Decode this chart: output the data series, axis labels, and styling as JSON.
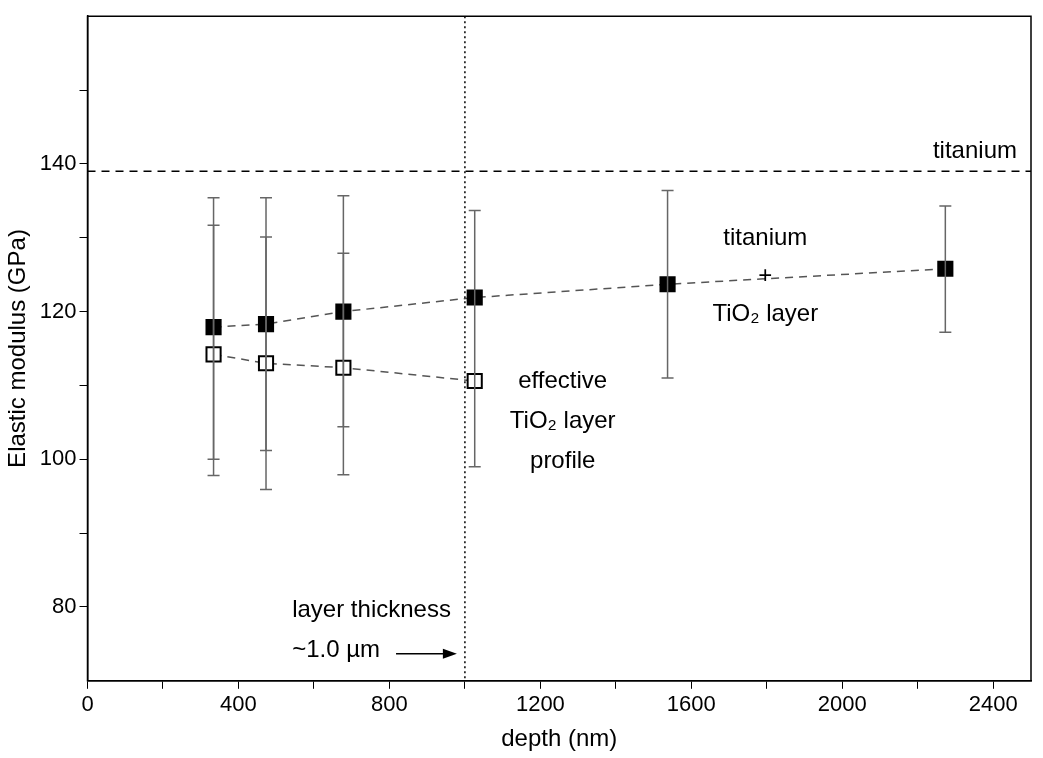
{
  "chart_data": {
    "type": "line",
    "xlabel": "depth (nm)",
    "ylabel": "Elastic modulus (GPa)",
    "xlim": [
      0,
      2500
    ],
    "xticks": [
      0,
      {
        "value": 200,
        "label": null
      },
      400,
      {
        "value": 600,
        "label": null
      },
      800,
      {
        "value": 1000,
        "label": null
      },
      1200,
      {
        "value": 1400,
        "label": null
      },
      1600,
      {
        "value": 1800,
        "label": null
      },
      2000,
      {
        "value": 2200,
        "label": null
      },
      2400
    ],
    "ylim": [
      70,
      160
    ],
    "yticks": [
      80,
      {
        "value": 90,
        "label": null
      },
      100,
      {
        "value": 110,
        "label": null
      },
      120,
      {
        "value": 130,
        "label": null
      },
      140,
      {
        "value": 150,
        "label": null
      }
    ],
    "grid": false,
    "legend": false,
    "marker": "square",
    "line_style": "dashed",
    "series": [
      {
        "name": "titanium\n+\nTiO₂ layer",
        "color": "#000000",
        "x": [
          334,
          473,
          678,
          1026,
          1537,
          2273
        ],
        "values": [
          117.9,
          118.3,
          120.0,
          121.9,
          123.7,
          125.8
        ],
        "errors": [
          [
            97.8,
            135.4
          ],
          [
            95.9,
            135.4
          ],
          [
            97.9,
            135.7
          ],
          [
            99.0,
            133.7
          ],
          [
            111.0,
            136.4
          ],
          [
            117.2,
            134.3
          ]
        ]
      },
      {
        "name": "effective\nTiO₂ layer\nprofile",
        "color": "#ffffff",
        "x": [
          334,
          473,
          678,
          1026
        ],
        "values": [
          114.2,
          113.0,
          112.4,
          110.6
        ],
        "errors": [
          [
            100.0,
            131.7
          ],
          [
            101.2,
            130.1
          ],
          [
            104.4,
            127.9
          ],
          null
        ]
      }
    ],
    "ref_lines": [
      {
        "axis": "y",
        "value": 139,
        "label": "titanium",
        "line_style": "dashed",
        "color": "#000000"
      },
      {
        "axis": "x",
        "value": 1000,
        "label": "layer thickness\n~1.0 µm",
        "line_style": "dotted",
        "color": "#000000"
      }
    ]
  }
}
